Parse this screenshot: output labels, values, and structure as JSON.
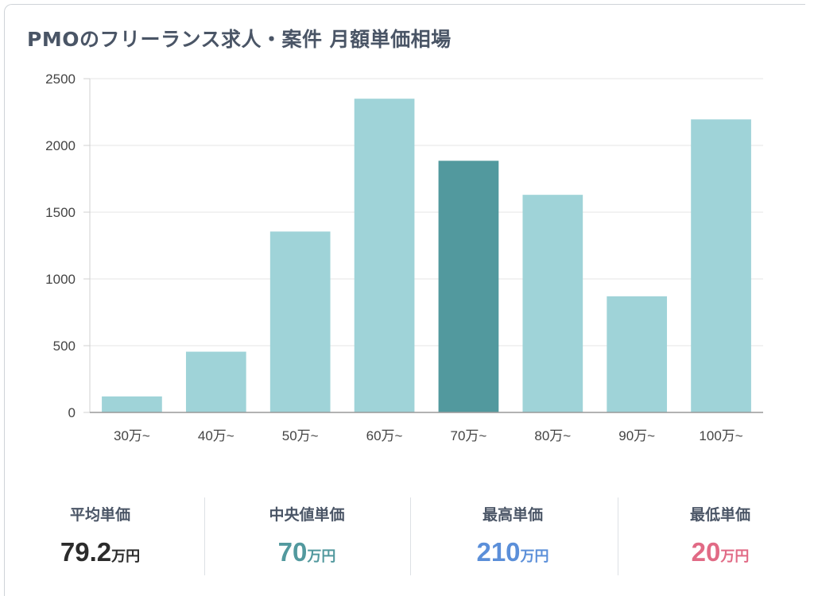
{
  "title": "PMOのフリーランス求人・案件 月額単価相場",
  "chart_data": {
    "type": "bar",
    "categories": [
      "30万~",
      "40万~",
      "50万~",
      "60万~",
      "70万~",
      "80万~",
      "90万~",
      "100万~"
    ],
    "values": [
      120,
      455,
      1355,
      2350,
      1885,
      1630,
      870,
      2195
    ],
    "ylim": [
      0,
      2500
    ],
    "yticks": [
      "0",
      "500",
      "1000",
      "1500",
      "2000",
      "2500"
    ],
    "highlight_index": 4,
    "grid": true,
    "colors": {
      "bar": "#9fd3d8",
      "bar_highlight": "#52999e"
    }
  },
  "stats": [
    {
      "label": "平均単価",
      "value": "79.2",
      "unit": "万円",
      "color": "#2b2b2b"
    },
    {
      "label": "中央値単価",
      "value": "70",
      "unit": "万円",
      "color": "#52999e"
    },
    {
      "label": "最高単価",
      "value": "210",
      "unit": "万円",
      "color": "#5b8fd9"
    },
    {
      "label": "最低単価",
      "value": "20",
      "unit": "万円",
      "color": "#e16a85"
    }
  ]
}
